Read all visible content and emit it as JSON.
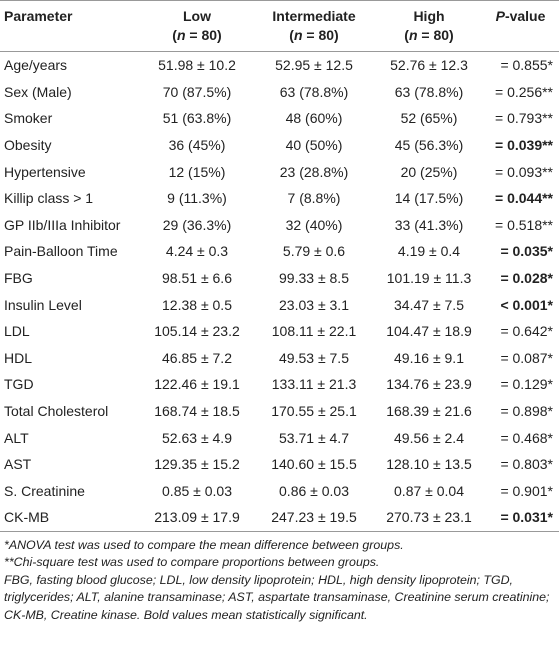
{
  "table": {
    "header": [
      {
        "label": "Parameter",
        "sub": null
      },
      {
        "label": "Low",
        "sub": [
          "(",
          "n",
          " = 80)"
        ]
      },
      {
        "label": "Intermediate",
        "sub": [
          "(",
          "n",
          " = 80)"
        ]
      },
      {
        "label": "High",
        "sub": [
          "(",
          "n",
          " = 80)"
        ]
      },
      {
        "label": [
          "P",
          "-value"
        ],
        "sub": null
      }
    ],
    "rows": [
      {
        "cells": [
          "Age/years",
          "51.98 ± 10.2",
          "52.95 ± 12.5",
          "52.76 ± 12.3",
          "= 0.855*"
        ],
        "bold": false
      },
      {
        "cells": [
          "Sex (Male)",
          "70 (87.5%)",
          "63 (78.8%)",
          "63 (78.8%)",
          "= 0.256**"
        ],
        "bold": false
      },
      {
        "cells": [
          "Smoker",
          "51 (63.8%)",
          "48 (60%)",
          "52 (65%)",
          "= 0.793**"
        ],
        "bold": false
      },
      {
        "cells": [
          "Obesity",
          "36 (45%)",
          "40 (50%)",
          "45 (56.3%)",
          "= 0.039**"
        ],
        "bold": true
      },
      {
        "cells": [
          "Hypertensive",
          "12 (15%)",
          "23 (28.8%)",
          "20 (25%)",
          "= 0.093**"
        ],
        "bold": false
      },
      {
        "cells": [
          "Killip class > 1",
          "9 (11.3%)",
          "7 (8.8%)",
          "14 (17.5%)",
          "= 0.044**"
        ],
        "bold": true
      },
      {
        "cells": [
          "GP IIb/IIIa Inhibitor",
          "29 (36.3%)",
          "32 (40%)",
          "33 (41.3%)",
          "= 0.518**"
        ],
        "bold": false
      },
      {
        "cells": [
          "Pain-Balloon Time",
          "4.24 ± 0.3",
          "5.79 ± 0.6",
          "4.19 ± 0.4",
          "= 0.035*"
        ],
        "bold": true
      },
      {
        "cells": [
          "FBG",
          "98.51 ± 6.6",
          "99.33 ± 8.5",
          "101.19 ± 11.3",
          "= 0.028*"
        ],
        "bold": true
      },
      {
        "cells": [
          "Insulin Level",
          "12.38 ± 0.5",
          "23.03 ± 3.1",
          "34.47 ± 7.5",
          "< 0.001*"
        ],
        "bold": true
      },
      {
        "cells": [
          "LDL",
          "105.14 ± 23.2",
          "108.11 ± 22.1",
          "104.47 ± 18.9",
          "= 0.642*"
        ],
        "bold": false
      },
      {
        "cells": [
          "HDL",
          "46.85 ± 7.2",
          "49.53 ± 7.5",
          "49.16 ± 9.1",
          "= 0.087*"
        ],
        "bold": false
      },
      {
        "cells": [
          "TGD",
          "122.46 ± 19.1",
          "133.11 ± 21.3",
          "134.76 ± 23.9",
          "= 0.129*"
        ],
        "bold": false
      },
      {
        "cells": [
          "Total Cholesterol",
          "168.74 ± 18.5",
          "170.55 ± 25.1",
          "168.39 ± 21.6",
          "= 0.898*"
        ],
        "bold": false
      },
      {
        "cells": [
          "ALT",
          "52.63 ± 4.9",
          "53.71 ± 4.7",
          "49.56 ± 2.4",
          "= 0.468*"
        ],
        "bold": false
      },
      {
        "cells": [
          "AST",
          "129.35 ± 15.2",
          "140.60 ± 15.5",
          "128.10 ± 13.5",
          "= 0.803*"
        ],
        "bold": false
      },
      {
        "cells": [
          "S. Creatinine",
          "0.85 ± 0.03",
          "0.86 ± 0.03",
          "0.87 ± 0.04",
          "= 0.901*"
        ],
        "bold": false
      },
      {
        "cells": [
          "CK-MB",
          "213.09 ± 17.9",
          "247.23 ± 19.5",
          "270.73 ± 23.1",
          "= 0.031*"
        ],
        "bold": true
      }
    ],
    "footnotes": [
      "*ANOVA test was used to compare the mean difference between groups.",
      "**Chi-square test was used to compare proportions between groups.",
      "FBG, fasting blood glucose; LDL, low density lipoprotein; HDL, high density lipoprotein; TGD, triglycerides; ALT, alanine transaminase; AST, aspartate transaminase, Creatinine serum creatinine; CK-MB, Creatine kinase. Bold values mean statistically significant."
    ]
  }
}
